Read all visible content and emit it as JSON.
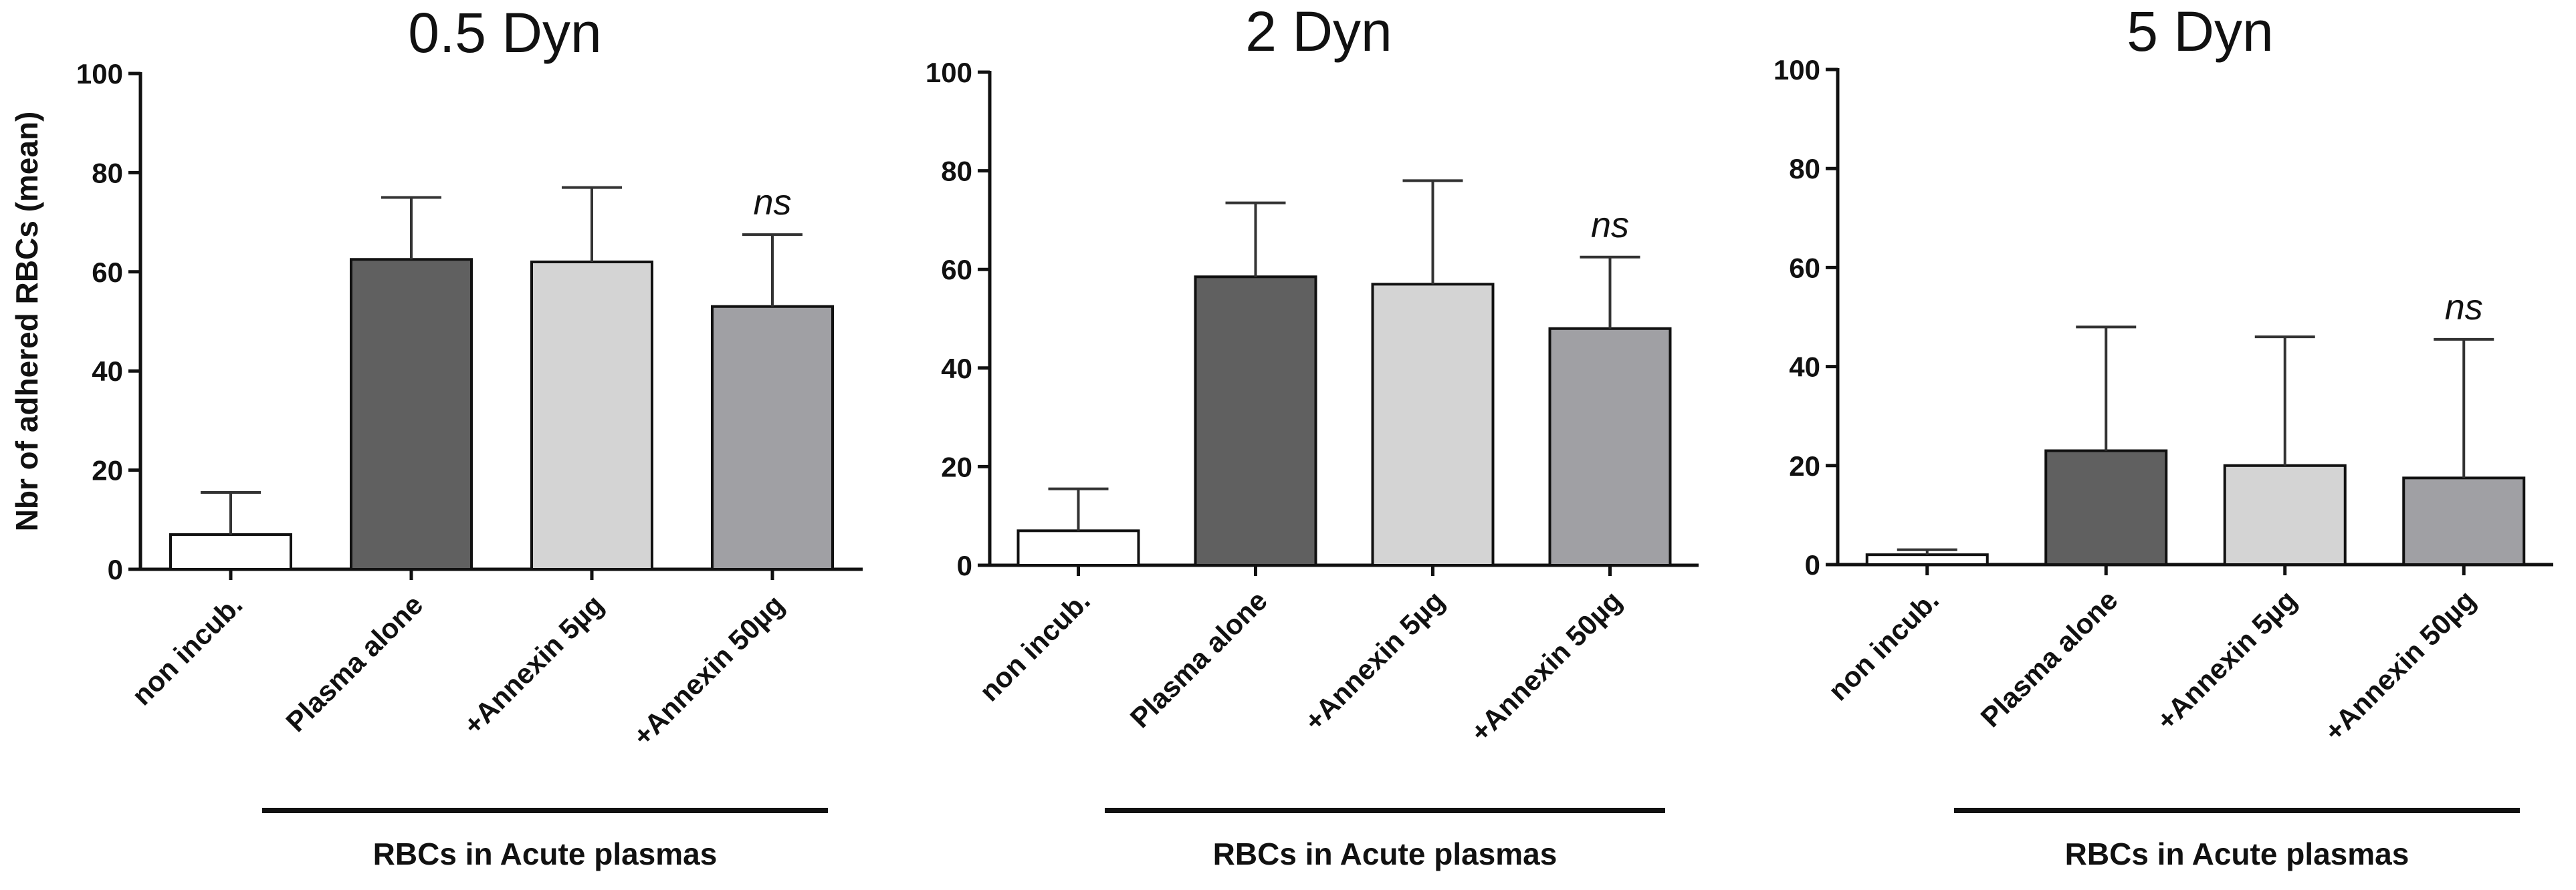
{
  "chart_data": [
    {
      "type": "bar",
      "title": "0.5 Dyn",
      "ylabel": "Nbr of adhered RBCs (mean)",
      "ylim": [
        0,
        100
      ],
      "yticks": [
        0,
        20,
        40,
        60,
        80,
        100
      ],
      "categories": [
        "non incub.",
        "Plasma alone",
        "+Annexin 5µg",
        "+Annexin 50µg"
      ],
      "values": [
        7,
        62.5,
        62,
        53
      ],
      "errors": [
        8.5,
        12.5,
        15,
        14.5
      ],
      "colors": [
        "#ffffff",
        "#606060",
        "#d4d4d4",
        "#a0a0a4"
      ],
      "annotations": [
        {
          "category": "+Annexin 50µg",
          "text": "ns"
        }
      ],
      "group_label": "RBCs in Acute plasmas"
    },
    {
      "type": "bar",
      "title": "2 Dyn",
      "ylabel": "",
      "ylim": [
        0,
        100
      ],
      "yticks": [
        0,
        20,
        40,
        60,
        80,
        100
      ],
      "categories": [
        "non incub.",
        "Plasma alone",
        "+Annexin 5µg",
        "+Annexin 50µg"
      ],
      "values": [
        7,
        58.5,
        57,
        48
      ],
      "errors": [
        8.5,
        15,
        21,
        14.5
      ],
      "colors": [
        "#ffffff",
        "#606060",
        "#d4d4d4",
        "#a0a0a4"
      ],
      "annotations": [
        {
          "category": "+Annexin 50µg",
          "text": "ns"
        }
      ],
      "group_label": "RBCs in Acute plasmas"
    },
    {
      "type": "bar",
      "title": "5 Dyn",
      "ylabel": "",
      "ylim": [
        0,
        100
      ],
      "yticks": [
        0,
        20,
        40,
        60,
        80,
        100
      ],
      "categories": [
        "non incub.",
        "Plasma alone",
        "+Annexin 5µg",
        "+Annexin 50µg"
      ],
      "values": [
        2,
        23,
        20,
        17.5
      ],
      "errors": [
        1,
        25,
        26,
        28
      ],
      "colors": [
        "#ffffff",
        "#606060",
        "#d4d4d4",
        "#a0a0a4"
      ],
      "annotations": [
        {
          "category": "+Annexin 50µg",
          "text": "ns"
        }
      ],
      "group_label": "RBCs in Acute plasmas"
    }
  ]
}
